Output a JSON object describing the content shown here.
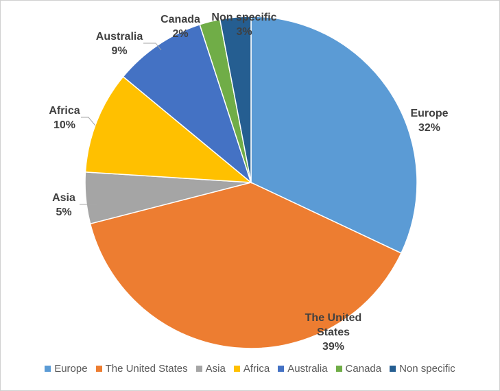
{
  "chart_data": {
    "type": "pie",
    "categories": [
      "Europe",
      "The United States",
      "Asia",
      "Africa",
      "Australia",
      "Canada",
      "Non specific"
    ],
    "values": [
      32,
      39,
      5,
      10,
      9,
      2,
      3
    ],
    "value_labels": [
      "32%",
      "39%",
      "5%",
      "10%",
      "9%",
      "2%",
      "3%"
    ],
    "colors": [
      "#5b9bd5",
      "#ed7d31",
      "#a5a5a5",
      "#ffc000",
      "#4472c4",
      "#70ad47",
      "#255e91"
    ],
    "legend": "bottom"
  }
}
